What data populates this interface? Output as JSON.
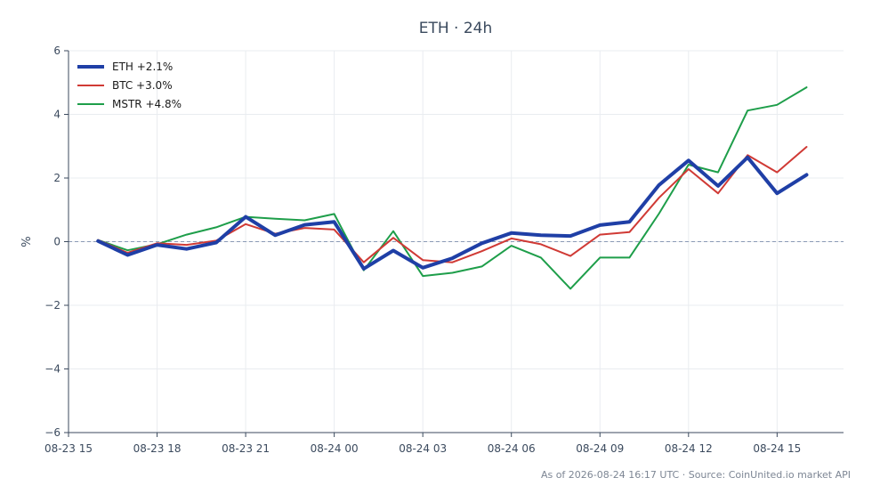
{
  "chart_data": {
    "type": "line",
    "title": "ETH · 24h",
    "xlabel": "",
    "ylabel": "%",
    "ylim": [
      -6,
      6
    ],
    "yticks": [
      -6,
      -4,
      -2,
      0,
      2,
      4,
      6
    ],
    "ytick_labels": [
      "−6",
      "−4",
      "−2",
      "0",
      "2",
      "4",
      "6"
    ],
    "xlim": [
      "2026-08-23 15:00",
      "2026-08-24 17:15"
    ],
    "xticks": [
      "2026-08-23 15:00",
      "2026-08-23 18:00",
      "2026-08-23 21:00",
      "2026-08-24 00:00",
      "2026-08-24 03:00",
      "2026-08-24 06:00",
      "2026-08-24 09:00",
      "2026-08-24 12:00",
      "2026-08-24 15:00"
    ],
    "xtick_labels": [
      "08-23 15",
      "08-23 18",
      "08-23 21",
      "08-24 00",
      "08-24 03",
      "08-24 06",
      "08-24 09",
      "08-24 12",
      "08-24 15"
    ],
    "x": [
      "2026-08-23 16:00",
      "2026-08-23 17:00",
      "2026-08-23 18:00",
      "2026-08-23 19:00",
      "2026-08-23 20:00",
      "2026-08-23 21:00",
      "2026-08-23 22:00",
      "2026-08-23 23:00",
      "2026-08-24 00:00",
      "2026-08-24 01:00",
      "2026-08-24 02:00",
      "2026-08-24 03:00",
      "2026-08-24 04:00",
      "2026-08-24 05:00",
      "2026-08-24 06:00",
      "2026-08-24 07:00",
      "2026-08-24 08:00",
      "2026-08-24 09:00",
      "2026-08-24 10:00",
      "2026-08-24 11:00",
      "2026-08-24 12:00",
      "2026-08-24 13:00",
      "2026-08-24 14:00",
      "2026-08-24 15:00",
      "2026-08-24 16:00"
    ],
    "series": [
      {
        "name": "ETH +2.1%",
        "color": "#1f3fa6",
        "values": [
          0.02,
          -0.42,
          -0.1,
          -0.23,
          -0.03,
          0.78,
          0.2,
          0.53,
          0.62,
          -0.85,
          -0.28,
          -0.82,
          -0.52,
          -0.05,
          0.27,
          0.2,
          0.18,
          0.52,
          0.62,
          1.78,
          2.55,
          1.75,
          2.65,
          1.52,
          2.1
        ]
      },
      {
        "name": "BTC +3.0%",
        "color": "#d03a35",
        "values": [
          0.05,
          -0.35,
          -0.05,
          -0.1,
          0.03,
          0.55,
          0.25,
          0.43,
          0.38,
          -0.65,
          0.12,
          -0.58,
          -0.65,
          -0.3,
          0.1,
          -0.08,
          -0.45,
          0.22,
          0.3,
          1.38,
          2.28,
          1.52,
          2.72,
          2.18,
          2.98
        ]
      },
      {
        "name": "MSTR +4.8%",
        "color": "#1e9e4a",
        "values": [
          0.05,
          -0.27,
          -0.08,
          0.22,
          0.45,
          0.78,
          0.72,
          0.67,
          0.87,
          -0.9,
          0.33,
          -1.08,
          -0.98,
          -0.78,
          -0.13,
          -0.5,
          -1.48,
          -0.5,
          -0.5,
          0.88,
          2.42,
          2.18,
          4.12,
          4.3,
          4.85
        ]
      }
    ],
    "zero_line": true,
    "grid": true,
    "legend_position": "top-left",
    "footer": "As of 2026-08-24 16:17 UTC · Source: CoinUnited.io market API"
  }
}
